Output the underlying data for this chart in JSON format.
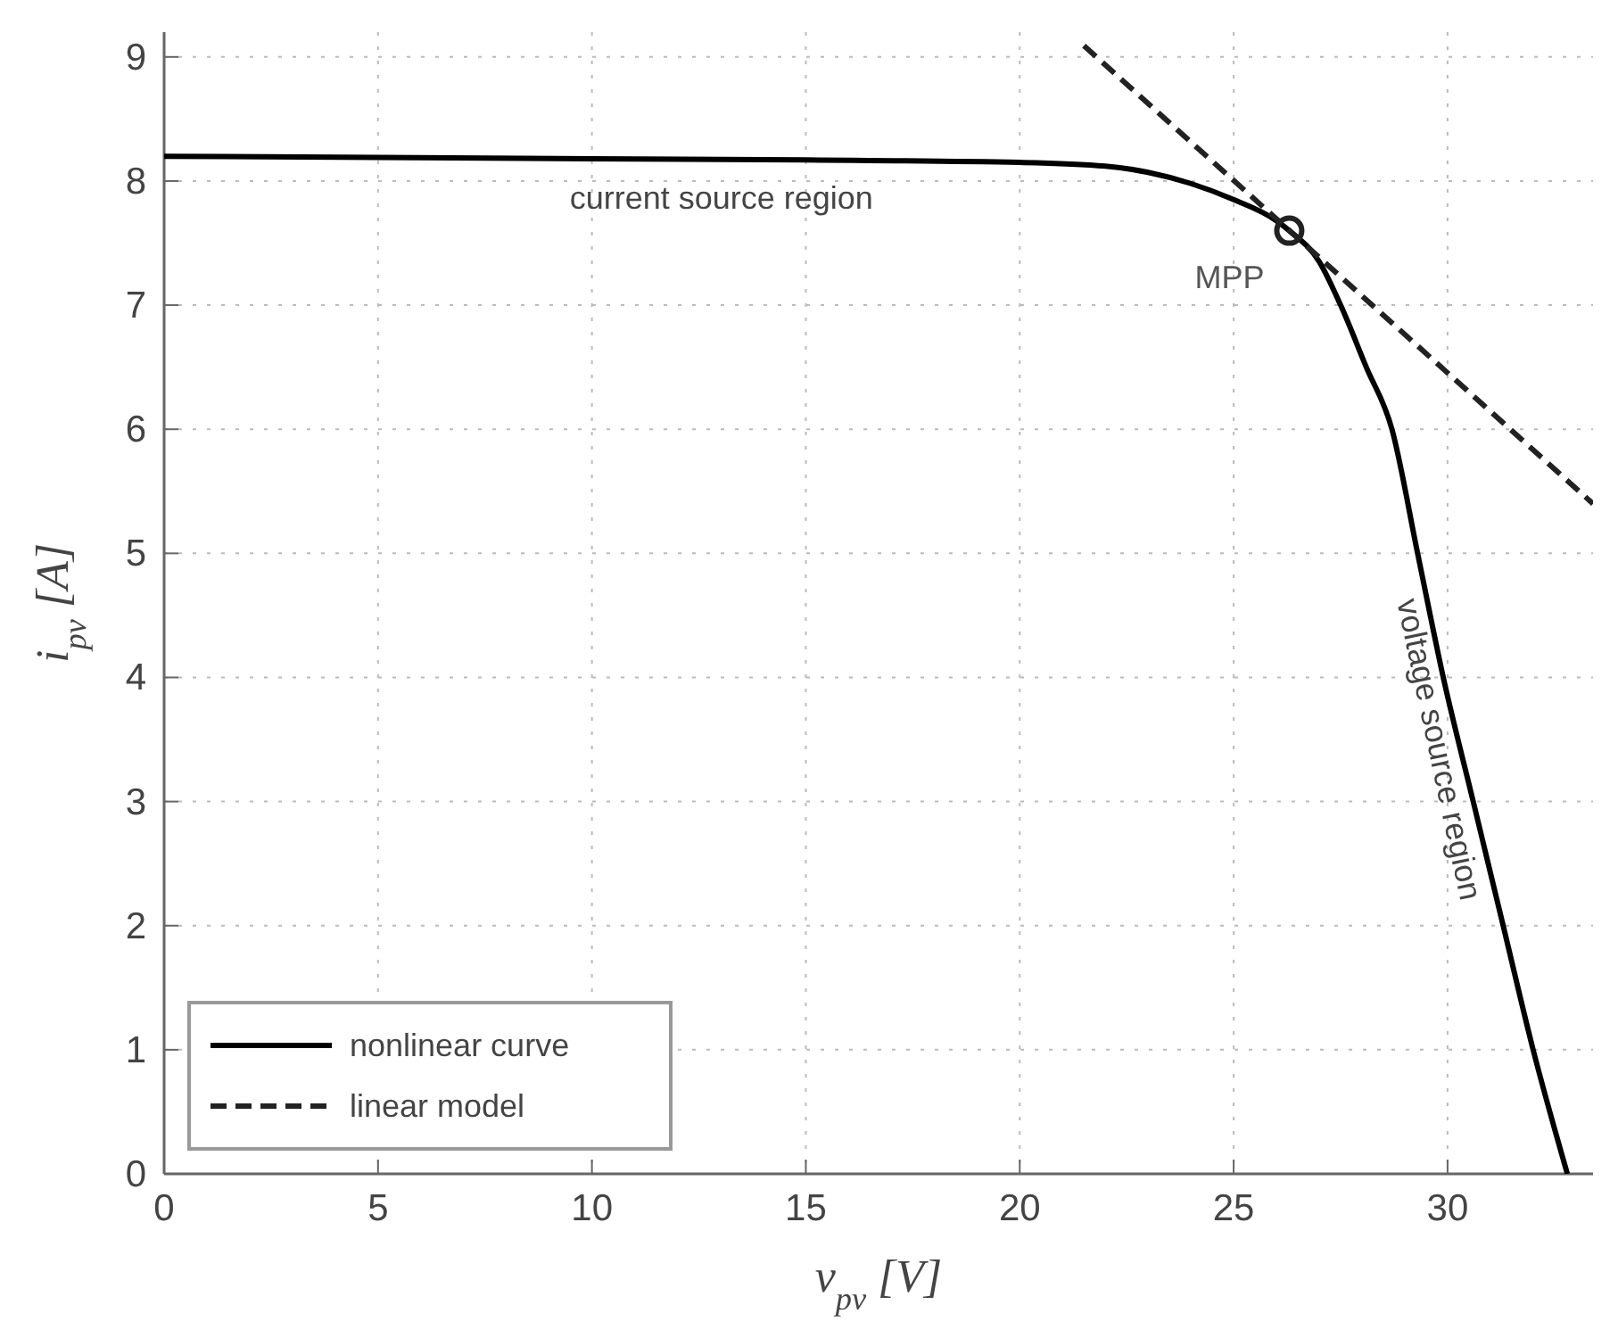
{
  "chart_data": {
    "type": "line",
    "xlabel": "v$_{pv}$ [V]",
    "ylabel": "i$_{pv}$ [A]",
    "xlim": [
      0,
      33.4
    ],
    "ylim": [
      0,
      9.2
    ],
    "xticks": [
      0,
      5,
      10,
      15,
      20,
      25,
      30
    ],
    "yticks": [
      0,
      1,
      2,
      3,
      4,
      5,
      6,
      7,
      8,
      9
    ],
    "grid": true,
    "legend": "bottom left",
    "series": [
      {
        "name": "nonlinear curve",
        "color": "#000000",
        "line_style": "solid",
        "x": [
          0,
          5,
          10,
          15,
          20,
          22,
          23,
          24,
          25,
          26,
          26.3,
          27,
          27.5,
          28.1,
          28.7,
          29.3,
          29.9,
          30.6,
          31.3,
          32,
          32.8
        ],
        "values": [
          8.2,
          8.19,
          8.18,
          8.17,
          8.15,
          8.12,
          8.07,
          7.98,
          7.85,
          7.68,
          7.6,
          7.35,
          7,
          6.5,
          6,
          5,
          4,
          3,
          2,
          1,
          0
        ]
      },
      {
        "name": "linear model",
        "color": "#222222",
        "line_style": "dashed",
        "x": [
          21.5,
          33.4
        ],
        "values": [
          9.09,
          5.4
        ]
      },
      {
        "type": "scatter",
        "color": "#222222",
        "marker": "circle",
        "x": [
          26.3
        ],
        "values": [
          7.6
        ]
      }
    ],
    "annotations": [
      {
        "text": "MPP",
        "x": 26.3,
        "y": 7.6
      },
      "current source region",
      "voltage source region"
    ]
  }
}
